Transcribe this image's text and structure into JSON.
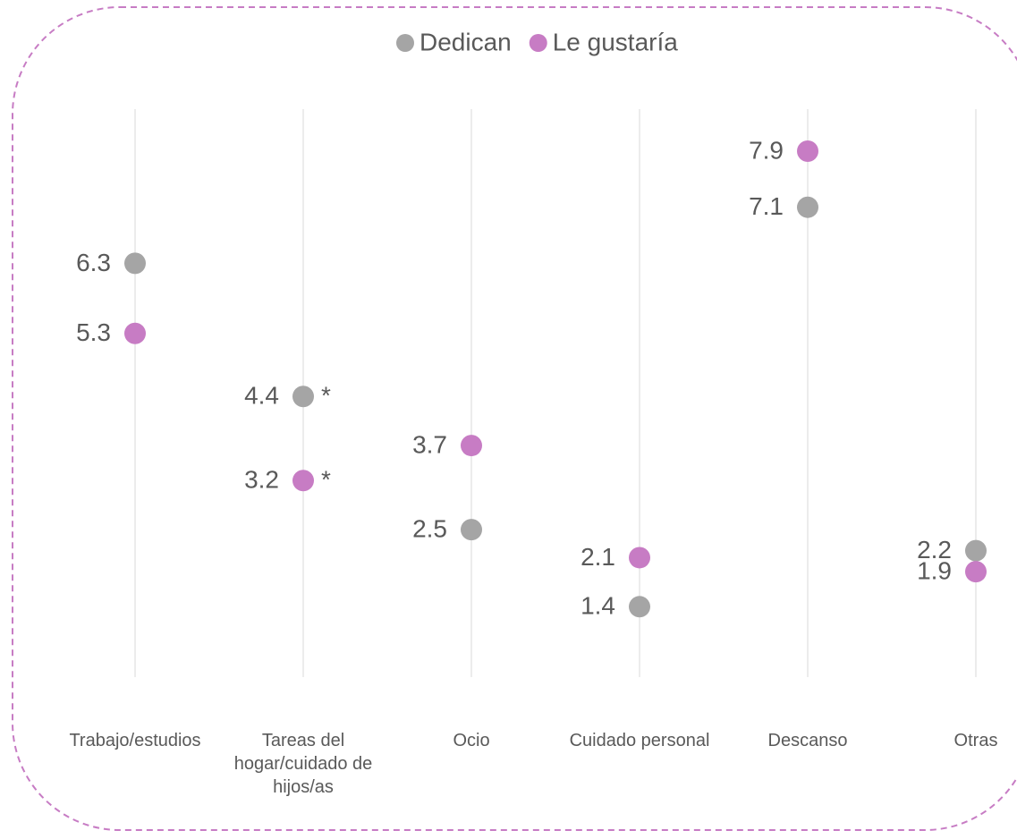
{
  "chart_data": {
    "type": "dot",
    "categories": [
      "Trabajo/estudios",
      "Tareas del hogar/cuidado de hijos/as",
      "Ocio",
      "Cuidado personal",
      "Descanso",
      "Otras"
    ],
    "series": [
      {
        "name": "Dedican",
        "color": "#a5a5a5",
        "values": [
          6.3,
          4.4,
          2.5,
          1.4,
          7.1,
          2.2
        ],
        "annotations": [
          null,
          "*",
          null,
          null,
          null,
          null
        ]
      },
      {
        "name": "Le gustaría",
        "color": "#c77cc4",
        "values": [
          5.3,
          3.2,
          3.7,
          2.1,
          7.9,
          1.9
        ],
        "annotations": [
          null,
          "*",
          null,
          null,
          null,
          null
        ]
      }
    ],
    "ylim": [
      0,
      8.5
    ]
  }
}
